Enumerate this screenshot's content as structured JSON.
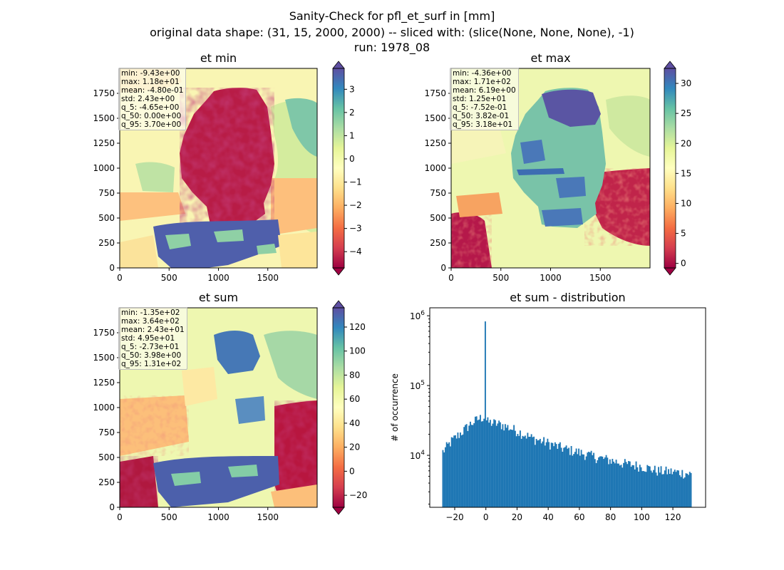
{
  "figure": {
    "title_lines": [
      "Sanity-Check for pfl_et_surf in [mm]",
      "original data shape: (31, 15, 2000, 2000) -- sliced with: (slice(None, None, None), -1)",
      "run: 1978_08"
    ]
  },
  "chart_data": [
    {
      "type": "heatmap",
      "title": "et min",
      "xlim": [
        0,
        2000
      ],
      "ylim": [
        0,
        2000
      ],
      "xticks": [
        0,
        500,
        1000,
        1500
      ],
      "yticks": [
        0,
        250,
        500,
        750,
        1000,
        1250,
        1500,
        1750
      ],
      "colormap": "Spectral",
      "colorbar": {
        "range": [
          -4.7,
          3.9
        ],
        "ticks": [
          3,
          2,
          1,
          0,
          -1,
          -2,
          -3,
          -4
        ],
        "tick_labels": [
          "3",
          "2",
          "1",
          "0",
          "−1",
          "−2",
          "−3",
          "−4"
        ],
        "extend": "both"
      },
      "stats": [
        "min: -9.43e+00",
        "max: 1.18e+01",
        "mean: -4.80e-01",
        "std: 2.43e+00",
        "q_5: -4.65e+00",
        "q_50: 0.00e+00",
        "q_95: 3.70e+00"
      ]
    },
    {
      "type": "heatmap",
      "title": "et max",
      "xlim": [
        0,
        2000
      ],
      "ylim": [
        0,
        2000
      ],
      "xticks": [
        0,
        500,
        1000,
        1500
      ],
      "yticks": [
        0,
        250,
        500,
        750,
        1000,
        1250,
        1500,
        1750
      ],
      "colormap": "Spectral",
      "colorbar": {
        "range": [
          -0.75,
          32.5
        ],
        "ticks": [
          30,
          25,
          20,
          15,
          10,
          5,
          0
        ],
        "tick_labels": [
          "30",
          "25",
          "20",
          "15",
          "10",
          "5",
          "0"
        ],
        "extend": "both"
      },
      "stats": [
        "min: -4.36e+00",
        "max: 1.71e+02",
        "mean: 6.19e+00",
        "std: 1.25e+01",
        "q_5: -7.52e-01",
        "q_50: 3.82e-01",
        "q_95: 3.18e+01"
      ]
    },
    {
      "type": "heatmap",
      "title": "et sum",
      "xlim": [
        0,
        2000
      ],
      "ylim": [
        0,
        2000
      ],
      "xticks": [
        0,
        500,
        1000,
        1500
      ],
      "yticks": [
        0,
        250,
        500,
        750,
        1000,
        1250,
        1500,
        1750
      ],
      "colormap": "Spectral",
      "colorbar": {
        "range": [
          -30,
          136
        ],
        "ticks": [
          120,
          100,
          80,
          60,
          40,
          20,
          0,
          -20
        ],
        "tick_labels": [
          "120",
          "100",
          "80",
          "60",
          "40",
          "20",
          "0",
          "−20"
        ],
        "extend": "both"
      },
      "stats": [
        "min: -1.35e+02",
        "max: 3.64e+02",
        "mean: 2.43e+01",
        "std: 4.95e+01",
        "q_5: -2.73e+01",
        "q_50: 3.98e+00",
        "q_95: 1.31e+02"
      ]
    },
    {
      "type": "bar",
      "title": "et sum - distribution",
      "xlabel": "",
      "ylabel": "# of occurrence",
      "yscale": "log",
      "xlim": [
        -36,
        141
      ],
      "ylim": [
        1800,
        1300000
      ],
      "xticks": [
        -20,
        0,
        20,
        40,
        60,
        80,
        100,
        120
      ],
      "xtick_labels": [
        "−20",
        "0",
        "20",
        "40",
        "60",
        "80",
        "100",
        "120"
      ],
      "yticks": [
        10000,
        100000,
        1000000
      ],
      "ytick_labels": [
        "10^4",
        "10^5",
        "10^6"
      ],
      "bar_color": "#1f77b4",
      "bins": {
        "start": -28,
        "end": 132,
        "count": 200
      },
      "shape": {
        "knots_x": [
          -28,
          -22,
          -15,
          -10,
          -5,
          -1,
          1,
          5,
          10,
          20,
          30,
          40,
          50,
          60,
          70,
          80,
          90,
          100,
          110,
          120,
          130,
          132
        ],
        "knots_y": [
          11000,
          16000,
          22000,
          28000,
          33000,
          36000,
          30000,
          29000,
          27500,
          22500,
          17500,
          15000,
          12500,
          11000,
          9500,
          8500,
          7500,
          7000,
          6000,
          5800,
          5500,
          5300
        ]
      },
      "spike": {
        "x": 0,
        "value": 830000
      }
    }
  ]
}
